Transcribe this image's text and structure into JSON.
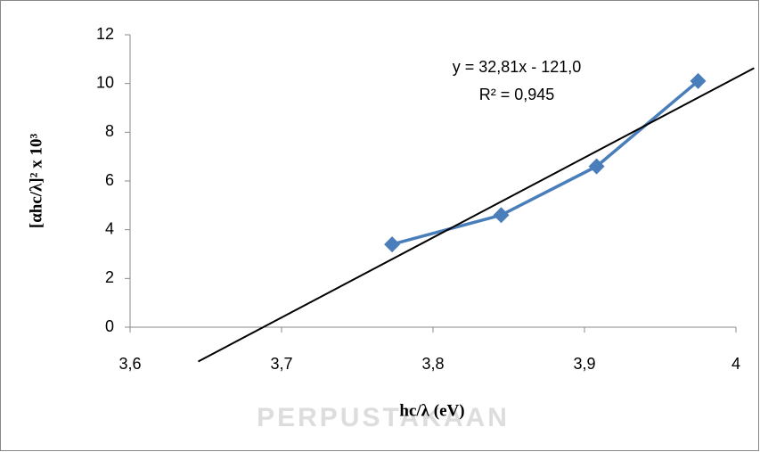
{
  "chart_data": {
    "type": "scatter",
    "x_label": "hc/λ (eV)",
    "y_label": "[αhc/λ]² x 10³",
    "series": [
      {
        "color": "#4a7ebb",
        "x": [
          3.773,
          3.845,
          3.908,
          3.975
        ],
        "values": [
          3.4,
          4.6,
          6.6,
          10.1
        ]
      }
    ],
    "xlim": [
      3.6,
      4
    ],
    "xticks": [
      {
        "value": 3.6,
        "label": "3,6"
      },
      {
        "value": 3.7,
        "label": "3,7"
      },
      {
        "value": 3.8,
        "label": "3,8"
      },
      {
        "value": 3.9,
        "label": "3,9"
      },
      4
    ],
    "ylim": [
      0,
      12
    ],
    "yticks": [
      0,
      2,
      4,
      6,
      8,
      10,
      12
    ],
    "trendline": {
      "color": "#000000",
      "slope": 32.81,
      "intercept": -121.0,
      "label": "y = 32,81x - 121,0",
      "r2": 0.945,
      "r2_label": "R² = 0,945",
      "x_range": [
        3.645,
        4.012
      ]
    }
  },
  "watermark": "PERPUSTAKAAN"
}
